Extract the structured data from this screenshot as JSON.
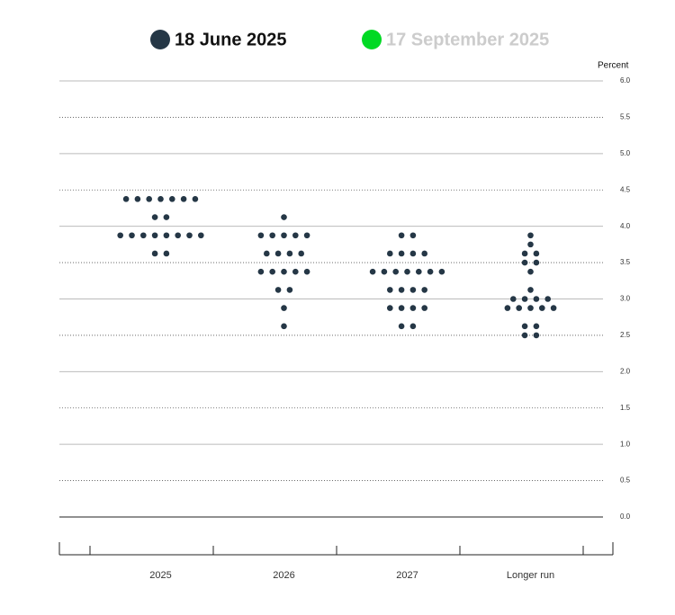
{
  "chart_data": {
    "type": "dot-plot",
    "y_axis_label": "Percent",
    "categories": [
      "2025",
      "2026",
      "2027",
      "Longer run"
    ],
    "ylim": [
      0,
      6
    ],
    "yticks": [
      {
        "value": 0,
        "label": "0.0"
      },
      {
        "value": 0.5,
        "label": "0.5"
      },
      {
        "value": 1,
        "label": "1.0"
      },
      {
        "value": 1.5,
        "label": "1.5"
      },
      {
        "value": 2,
        "label": "2.0"
      },
      {
        "value": 2.5,
        "label": "2.5"
      },
      {
        "value": 3,
        "label": "3.0"
      },
      {
        "value": 3.5,
        "label": "3.5"
      },
      {
        "value": 4,
        "label": "4.0"
      },
      {
        "value": 4.5,
        "label": "4.5"
      },
      {
        "value": 5,
        "label": "5.0"
      },
      {
        "value": 5.5,
        "label": "5.5"
      },
      {
        "value": 6,
        "label": "6.0"
      }
    ],
    "series": [
      {
        "name": "18 June 2025",
        "color": "#253746",
        "x": [
          "2025",
          "2025",
          "2025",
          "2025",
          "2025",
          "2025",
          "2025",
          "2025",
          "2025",
          "2025",
          "2025",
          "2025",
          "2025",
          "2025",
          "2025",
          "2025",
          "2025",
          "2025",
          "2025",
          "2026",
          "2026",
          "2026",
          "2026",
          "2026",
          "2026",
          "2026",
          "2026",
          "2026",
          "2026",
          "2026",
          "2026",
          "2026",
          "2026",
          "2026",
          "2026",
          "2026",
          "2026",
          "2026",
          "2027",
          "2027",
          "2027",
          "2027",
          "2027",
          "2027",
          "2027",
          "2027",
          "2027",
          "2027",
          "2027",
          "2027",
          "2027",
          "2027",
          "2027",
          "2027",
          "2027",
          "2027",
          "2027",
          "2027",
          "2027",
          "2027",
          "2027",
          "Longer run",
          "Longer run",
          "Longer run",
          "Longer run",
          "Longer run",
          "Longer run",
          "Longer run",
          "Longer run",
          "Longer run",
          "Longer run",
          "Longer run",
          "Longer run",
          "Longer run",
          "Longer run",
          "Longer run",
          "Longer run",
          "Longer run",
          "Longer run",
          "Longer run",
          "Longer run",
          "Longer run"
        ],
        "values": [
          4.375,
          4.375,
          4.375,
          4.375,
          4.375,
          4.375,
          4.375,
          4.125,
          4.125,
          3.875,
          3.875,
          3.875,
          3.875,
          3.875,
          3.875,
          3.875,
          3.875,
          3.625,
          3.625,
          4.125,
          3.875,
          3.875,
          3.875,
          3.875,
          3.875,
          3.625,
          3.625,
          3.625,
          3.625,
          3.375,
          3.375,
          3.375,
          3.375,
          3.375,
          3.125,
          3.125,
          2.875,
          2.625,
          3.875,
          3.875,
          3.625,
          3.625,
          3.625,
          3.625,
          3.375,
          3.375,
          3.375,
          3.375,
          3.375,
          3.375,
          3.375,
          3.125,
          3.125,
          3.125,
          3.125,
          2.875,
          2.875,
          2.875,
          2.875,
          2.625,
          2.625,
          3.875,
          3.75,
          3.625,
          3.625,
          3.5,
          3.5,
          3.375,
          3.125,
          3,
          3,
          3,
          3,
          2.875,
          2.875,
          2.875,
          2.875,
          2.875,
          2.625,
          2.625,
          2.5,
          2.5
        ]
      },
      {
        "name": "17 September 2025",
        "color": "#00d924",
        "x": [],
        "values": []
      }
    ]
  }
}
